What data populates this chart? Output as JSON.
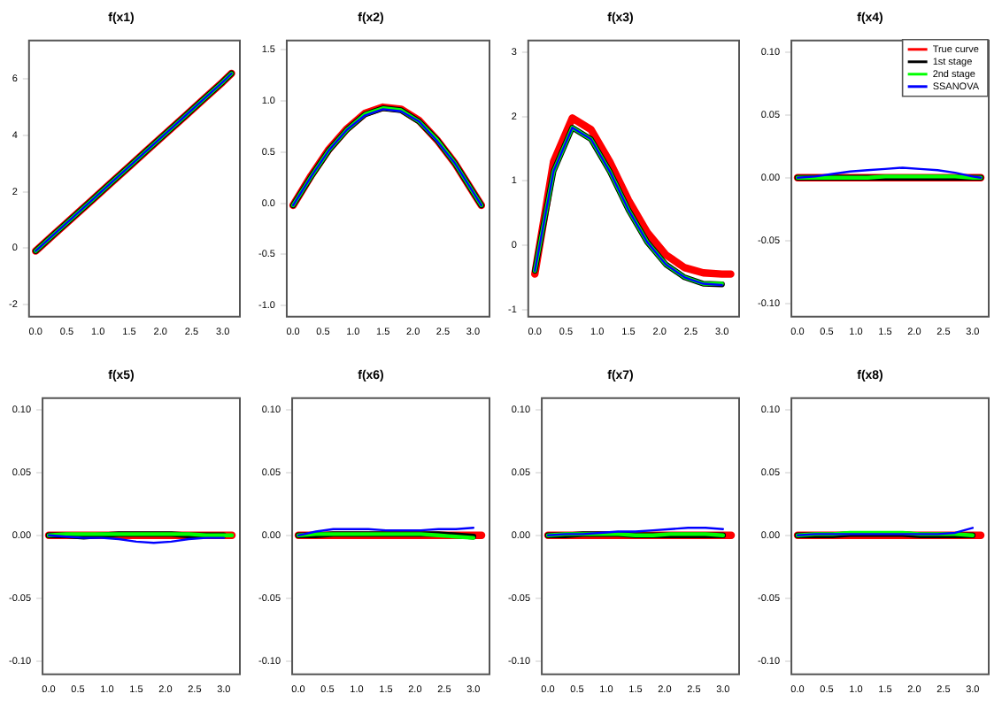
{
  "chart_data": [
    {
      "type": "line",
      "title": "f(x1)",
      "x": [
        0,
        0.3,
        0.6,
        0.9,
        1.2,
        1.5,
        1.8,
        2.1,
        2.4,
        2.7,
        3.0,
        3.14
      ],
      "xlim": [
        -0.12,
        3.26
      ],
      "xticks": [
        {
          "value": 0,
          "label": "0.0"
        },
        {
          "value": 0.5,
          "label": "0.5"
        },
        {
          "value": 1,
          "label": "1.0"
        },
        {
          "value": 1.5,
          "label": "1.5"
        },
        {
          "value": 2,
          "label": "2.0"
        },
        {
          "value": 2.5,
          "label": "2.5"
        },
        {
          "value": 3,
          "label": "3.0"
        }
      ],
      "ylim": [
        -2.4,
        7.4
      ],
      "yticks": [
        -2,
        0,
        2,
        4,
        6
      ],
      "grid": false,
      "marker": "none",
      "line_style": "solid",
      "series": [
        {
          "color": "#ff0000",
          "values": [
            -0.1,
            0.5,
            1.1,
            1.7,
            2.3,
            2.9,
            3.5,
            4.1,
            4.7,
            5.3,
            5.9,
            6.2
          ]
        },
        {
          "color": "#000000",
          "values": [
            -0.1,
            0.5,
            1.1,
            1.7,
            2.3,
            2.9,
            3.5,
            4.1,
            4.7,
            5.3,
            5.9,
            6.2
          ]
        },
        {
          "color": "#00ff00",
          "values": [
            -0.1,
            0.5,
            1.1,
            1.7,
            2.3,
            2.9,
            3.5,
            4.1,
            4.7,
            5.3,
            5.9,
            6.2
          ]
        },
        {
          "color": "#0000ff",
          "values": [
            -0.1,
            0.5,
            1.1,
            1.7,
            2.3,
            2.9,
            3.5,
            4.1,
            4.7,
            5.3,
            5.9,
            6.2
          ]
        }
      ]
    },
    {
      "type": "line",
      "title": "f(x2)",
      "x": [
        0,
        0.3,
        0.6,
        0.9,
        1.2,
        1.5,
        1.8,
        2.1,
        2.4,
        2.7,
        3.0,
        3.14
      ],
      "xlim": [
        -0.12,
        3.26
      ],
      "xticks": [
        {
          "value": 0,
          "label": "0.0"
        },
        {
          "value": 0.5,
          "label": "0.5"
        },
        {
          "value": 1,
          "label": "1.0"
        },
        {
          "value": 1.5,
          "label": "1.5"
        },
        {
          "value": 2,
          "label": "2.0"
        },
        {
          "value": 2.5,
          "label": "2.5"
        },
        {
          "value": 3,
          "label": "3.0"
        }
      ],
      "ylim": [
        -1.1,
        1.6
      ],
      "yticks": [
        {
          "value": -1,
          "label": "-1.0"
        },
        {
          "value": -0.5,
          "label": "-0.5"
        },
        {
          "value": 0,
          "label": "0.0"
        },
        {
          "value": 0.5,
          "label": "0.5"
        },
        {
          "value": 1,
          "label": "1.0"
        },
        {
          "value": 1.5,
          "label": "1.5"
        }
      ],
      "grid": false,
      "marker": "none",
      "line_style": "solid",
      "series": [
        {
          "color": "#ff0000",
          "values": [
            -0.02,
            0.27,
            0.53,
            0.73,
            0.88,
            0.94,
            0.92,
            0.81,
            0.62,
            0.39,
            0.11,
            -0.02
          ]
        },
        {
          "color": "#000000",
          "values": [
            -0.02,
            0.26,
            0.52,
            0.72,
            0.87,
            0.93,
            0.91,
            0.8,
            0.62,
            0.39,
            0.11,
            -0.02
          ]
        },
        {
          "color": "#00ff00",
          "values": [
            -0.02,
            0.26,
            0.52,
            0.72,
            0.87,
            0.93,
            0.91,
            0.8,
            0.62,
            0.39,
            0.11,
            -0.02
          ]
        },
        {
          "color": "#0000ff",
          "values": [
            -0.02,
            0.26,
            0.52,
            0.72,
            0.86,
            0.92,
            0.9,
            0.8,
            0.61,
            0.39,
            0.11,
            -0.02
          ]
        }
      ]
    },
    {
      "type": "line",
      "title": "f(x3)",
      "x": [
        0,
        0.3,
        0.6,
        0.9,
        1.2,
        1.5,
        1.8,
        2.1,
        2.4,
        2.7,
        3.0,
        3.14
      ],
      "xlim": [
        -0.12,
        3.26
      ],
      "xticks": [
        {
          "value": 0,
          "label": "0.0"
        },
        {
          "value": 0.5,
          "label": "0.5"
        },
        {
          "value": 1,
          "label": "1.0"
        },
        {
          "value": 1.5,
          "label": "1.5"
        },
        {
          "value": 2,
          "label": "2.0"
        },
        {
          "value": 2.5,
          "label": "2.5"
        },
        {
          "value": 3,
          "label": "3.0"
        }
      ],
      "ylim": [
        -1.1,
        3.2
      ],
      "yticks": [
        -1,
        0,
        1,
        2,
        3
      ],
      "grid": false,
      "marker": "none",
      "line_style": "solid",
      "series": [
        {
          "color": "#ff0000",
          "values": [
            -0.45,
            1.3,
            1.98,
            1.8,
            1.3,
            0.7,
            0.2,
            -0.15,
            -0.35,
            -0.43,
            -0.45,
            -0.45
          ]
        },
        {
          "color": "#000000",
          "values": [
            -0.4,
            1.15,
            1.83,
            1.65,
            1.15,
            0.55,
            0.05,
            -0.3,
            -0.5,
            -0.6,
            -0.61,
            null
          ]
        },
        {
          "color": "#00ff00",
          "values": [
            -0.4,
            1.15,
            1.83,
            1.65,
            1.15,
            0.55,
            0.05,
            -0.3,
            -0.5,
            -0.6,
            -0.6,
            null
          ]
        },
        {
          "color": "#0000ff",
          "values": [
            -0.4,
            1.15,
            1.83,
            1.65,
            1.15,
            0.55,
            0.05,
            -0.3,
            -0.5,
            -0.6,
            -0.62,
            null
          ]
        }
      ]
    },
    {
      "type": "line",
      "title": "f(x4)",
      "x": [
        0,
        0.3,
        0.6,
        0.9,
        1.2,
        1.5,
        1.8,
        2.1,
        2.4,
        2.7,
        3.0,
        3.14
      ],
      "xlim": [
        -0.12,
        3.26
      ],
      "xticks": [
        {
          "value": 0,
          "label": "0.0"
        },
        {
          "value": 0.5,
          "label": "0.5"
        },
        {
          "value": 1,
          "label": "1.0"
        },
        {
          "value": 1.5,
          "label": "1.5"
        },
        {
          "value": 2,
          "label": "2.0"
        },
        {
          "value": 2.5,
          "label": "2.5"
        },
        {
          "value": 3,
          "label": "3.0"
        }
      ],
      "ylim": [
        -0.11,
        0.11
      ],
      "yticks": [
        {
          "value": -0.1,
          "label": "-0.10"
        },
        {
          "value": -0.05,
          "label": "-0.05"
        },
        {
          "value": 0,
          "label": "0.00"
        },
        {
          "value": 0.05,
          "label": "0.05"
        },
        {
          "value": 0.1,
          "label": "0.10"
        }
      ],
      "grid": false,
      "marker": "none",
      "line_style": "solid",
      "legend": "top right",
      "series": [
        {
          "name": "True curve",
          "color": "#ff0000",
          "values": [
            0,
            0,
            0,
            0,
            0,
            0,
            0,
            0,
            0,
            0,
            0,
            0
          ]
        },
        {
          "name": "1st stage",
          "color": "#000000",
          "values": [
            0,
            0,
            0,
            0,
            0,
            0,
            0,
            0,
            0,
            0,
            0,
            0
          ]
        },
        {
          "name": "2nd stage",
          "color": "#00ff00",
          "values": [
            0,
            0,
            0,
            0,
            0,
            0.001,
            0.001,
            0.001,
            0.001,
            0.001,
            0,
            0
          ]
        },
        {
          "name": "SSANOVA",
          "color": "#0000ff",
          "values": [
            0,
            0.001,
            0.003,
            0.005,
            0.006,
            0.007,
            0.008,
            0.007,
            0.006,
            0.004,
            0.001,
            0
          ]
        }
      ]
    },
    {
      "type": "line",
      "title": "f(x5)",
      "x": [
        0,
        0.3,
        0.6,
        0.9,
        1.2,
        1.5,
        1.8,
        2.1,
        2.4,
        2.7,
        3.0,
        3.14
      ],
      "xlim": [
        -0.12,
        3.26
      ],
      "xticks": [
        {
          "value": 0,
          "label": "0.0"
        },
        {
          "value": 0.5,
          "label": "0.5"
        },
        {
          "value": 1,
          "label": "1.0"
        },
        {
          "value": 1.5,
          "label": "1.5"
        },
        {
          "value": 2,
          "label": "2.0"
        },
        {
          "value": 2.5,
          "label": "2.5"
        },
        {
          "value": 3,
          "label": "3.0"
        }
      ],
      "ylim": [
        -0.11,
        0.11
      ],
      "yticks": [
        {
          "value": -0.1,
          "label": "-0.10"
        },
        {
          "value": -0.05,
          "label": "-0.05"
        },
        {
          "value": 0,
          "label": "0.00"
        },
        {
          "value": 0.05,
          "label": "0.05"
        },
        {
          "value": 0.1,
          "label": "0.10"
        }
      ],
      "grid": false,
      "marker": "none",
      "line_style": "solid",
      "series": [
        {
          "color": "#ff0000",
          "values": [
            0,
            0,
            0,
            0,
            0,
            0,
            0,
            0,
            0,
            0,
            0,
            0
          ]
        },
        {
          "color": "#000000",
          "values": [
            0,
            0,
            -0.001,
            0,
            0.001,
            0.001,
            0.001,
            0.001,
            0,
            0,
            0,
            null
          ]
        },
        {
          "color": "#00ff00",
          "values": [
            0,
            0.001,
            0.001,
            0.001,
            0.001,
            0.001,
            0.001,
            0.001,
            0.001,
            0,
            0,
            0
          ]
        },
        {
          "color": "#0000ff",
          "values": [
            0,
            -0.001,
            -0.002,
            -0.002,
            -0.003,
            -0.005,
            -0.006,
            -0.005,
            -0.003,
            -0.002,
            -0.002,
            null
          ]
        }
      ]
    },
    {
      "type": "line",
      "title": "f(x6)",
      "x": [
        0,
        0.3,
        0.6,
        0.9,
        1.2,
        1.5,
        1.8,
        2.1,
        2.4,
        2.7,
        3.0,
        3.14
      ],
      "xlim": [
        -0.12,
        3.26
      ],
      "xticks": [
        {
          "value": 0,
          "label": "0.0"
        },
        {
          "value": 0.5,
          "label": "0.5"
        },
        {
          "value": 1,
          "label": "1.0"
        },
        {
          "value": 1.5,
          "label": "1.5"
        },
        {
          "value": 2,
          "label": "2.0"
        },
        {
          "value": 2.5,
          "label": "2.5"
        },
        {
          "value": 3,
          "label": "3.0"
        }
      ],
      "ylim": [
        -0.11,
        0.11
      ],
      "yticks": [
        {
          "value": -0.1,
          "label": "-0.10"
        },
        {
          "value": -0.05,
          "label": "-0.05"
        },
        {
          "value": 0,
          "label": "0.00"
        },
        {
          "value": 0.05,
          "label": "0.05"
        },
        {
          "value": 0.1,
          "label": "0.10"
        }
      ],
      "grid": false,
      "marker": "none",
      "line_style": "solid",
      "series": [
        {
          "color": "#ff0000",
          "values": [
            0,
            0,
            0,
            0,
            0,
            0,
            0,
            0,
            0,
            0,
            0,
            0
          ]
        },
        {
          "color": "#000000",
          "values": [
            0,
            0,
            0.001,
            0.001,
            0.001,
            0.001,
            0.001,
            0.001,
            0.001,
            0,
            -0.001,
            null
          ]
        },
        {
          "color": "#00ff00",
          "values": [
            0,
            0.001,
            0.001,
            0.001,
            0.001,
            0.001,
            0.001,
            0.001,
            0,
            -0.001,
            -0.002,
            null
          ]
        },
        {
          "color": "#0000ff",
          "values": [
            0,
            0.003,
            0.005,
            0.005,
            0.005,
            0.004,
            0.004,
            0.004,
            0.005,
            0.005,
            0.006,
            null
          ]
        }
      ]
    },
    {
      "type": "line",
      "title": "f(x7)",
      "x": [
        0,
        0.3,
        0.6,
        0.9,
        1.2,
        1.5,
        1.8,
        2.1,
        2.4,
        2.7,
        3.0,
        3.14
      ],
      "xlim": [
        -0.12,
        3.26
      ],
      "xticks": [
        {
          "value": 0,
          "label": "0.0"
        },
        {
          "value": 0.5,
          "label": "0.5"
        },
        {
          "value": 1,
          "label": "1.0"
        },
        {
          "value": 1.5,
          "label": "1.5"
        },
        {
          "value": 2,
          "label": "2.0"
        },
        {
          "value": 2.5,
          "label": "2.5"
        },
        {
          "value": 3,
          "label": "3.0"
        }
      ],
      "ylim": [
        -0.11,
        0.11
      ],
      "yticks": [
        {
          "value": -0.1,
          "label": "-0.10"
        },
        {
          "value": -0.05,
          "label": "-0.05"
        },
        {
          "value": 0,
          "label": "0.00"
        },
        {
          "value": 0.05,
          "label": "0.05"
        },
        {
          "value": 0.1,
          "label": "0.10"
        }
      ],
      "grid": false,
      "marker": "none",
      "line_style": "solid",
      "series": [
        {
          "color": "#ff0000",
          "values": [
            0,
            0,
            0,
            0,
            0,
            0,
            0,
            0,
            0,
            0,
            0,
            0
          ]
        },
        {
          "color": "#000000",
          "values": [
            0,
            0,
            0.001,
            0.001,
            0.001,
            0,
            0,
            0,
            0,
            0,
            0,
            null
          ]
        },
        {
          "color": "#00ff00",
          "values": [
            0,
            0.001,
            0.001,
            0.001,
            0.001,
            0,
            0,
            0.001,
            0.001,
            0.001,
            0,
            null
          ]
        },
        {
          "color": "#0000ff",
          "values": [
            0,
            0.001,
            0.001,
            0.002,
            0.003,
            0.003,
            0.004,
            0.005,
            0.006,
            0.006,
            0.005,
            null
          ]
        }
      ]
    },
    {
      "type": "line",
      "title": "f(x8)",
      "x": [
        0,
        0.3,
        0.6,
        0.9,
        1.2,
        1.5,
        1.8,
        2.1,
        2.4,
        2.7,
        3.0,
        3.14
      ],
      "xlim": [
        -0.12,
        3.26
      ],
      "xticks": [
        {
          "value": 0,
          "label": "0.0"
        },
        {
          "value": 0.5,
          "label": "0.5"
        },
        {
          "value": 1,
          "label": "1.0"
        },
        {
          "value": 1.5,
          "label": "1.5"
        },
        {
          "value": 2,
          "label": "2.0"
        },
        {
          "value": 2.5,
          "label": "2.5"
        },
        {
          "value": 3,
          "label": "3.0"
        }
      ],
      "ylim": [
        -0.11,
        0.11
      ],
      "yticks": [
        {
          "value": -0.1,
          "label": "-0.10"
        },
        {
          "value": -0.05,
          "label": "-0.05"
        },
        {
          "value": 0,
          "label": "0.00"
        },
        {
          "value": 0.05,
          "label": "0.05"
        },
        {
          "value": 0.1,
          "label": "0.10"
        }
      ],
      "grid": false,
      "marker": "none",
      "line_style": "solid",
      "series": [
        {
          "color": "#ff0000",
          "values": [
            0,
            0,
            0,
            0,
            0,
            0,
            0,
            0,
            0,
            0,
            0,
            0
          ]
        },
        {
          "color": "#000000",
          "values": [
            0,
            0,
            0,
            0.001,
            0.001,
            0.001,
            0.001,
            0,
            0,
            0,
            0,
            null
          ]
        },
        {
          "color": "#00ff00",
          "values": [
            0,
            0.001,
            0.001,
            0.002,
            0.002,
            0.002,
            0.002,
            0.001,
            0.001,
            0.001,
            0,
            null
          ]
        },
        {
          "color": "#0000ff",
          "values": [
            0,
            0.001,
            0.001,
            0.001,
            0.001,
            0.001,
            0.001,
            0.001,
            0.001,
            0.002,
            0.006,
            null
          ]
        }
      ]
    }
  ]
}
